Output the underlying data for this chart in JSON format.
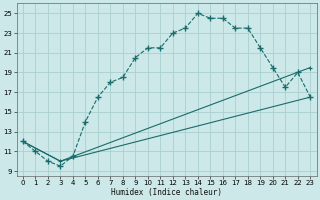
{
  "xlabel": "Humidex (Indice chaleur)",
  "background_color": "#cce8e8",
  "grid_color": "#aacfcf",
  "line_color": "#1a6b6b",
  "xlim": [
    -0.5,
    23.5
  ],
  "ylim": [
    8.5,
    26
  ],
  "xticks": [
    0,
    1,
    2,
    3,
    4,
    5,
    6,
    7,
    8,
    9,
    10,
    11,
    12,
    13,
    14,
    15,
    16,
    17,
    18,
    19,
    20,
    21,
    22,
    23
  ],
  "yticks": [
    9,
    11,
    13,
    15,
    17,
    19,
    21,
    23,
    25
  ],
  "line1_x": [
    0,
    1,
    2,
    3,
    4,
    5,
    6,
    7,
    8,
    9,
    10,
    11,
    12,
    13,
    14,
    15,
    16,
    17,
    18,
    19,
    20,
    21,
    22,
    23
  ],
  "line1_y": [
    12,
    11,
    10,
    9.5,
    10.5,
    14,
    16.5,
    18,
    18.5,
    20.5,
    21.5,
    21.5,
    23,
    23.5,
    25,
    24.5,
    24.5,
    23.5,
    23.5,
    21.5,
    19.5,
    17.5,
    19,
    16.5
  ],
  "line2_x": [
    0,
    3,
    23
  ],
  "line2_y": [
    12,
    10,
    19.5
  ],
  "line3_x": [
    0,
    3,
    23
  ],
  "line3_y": [
    12,
    10,
    16.5
  ]
}
